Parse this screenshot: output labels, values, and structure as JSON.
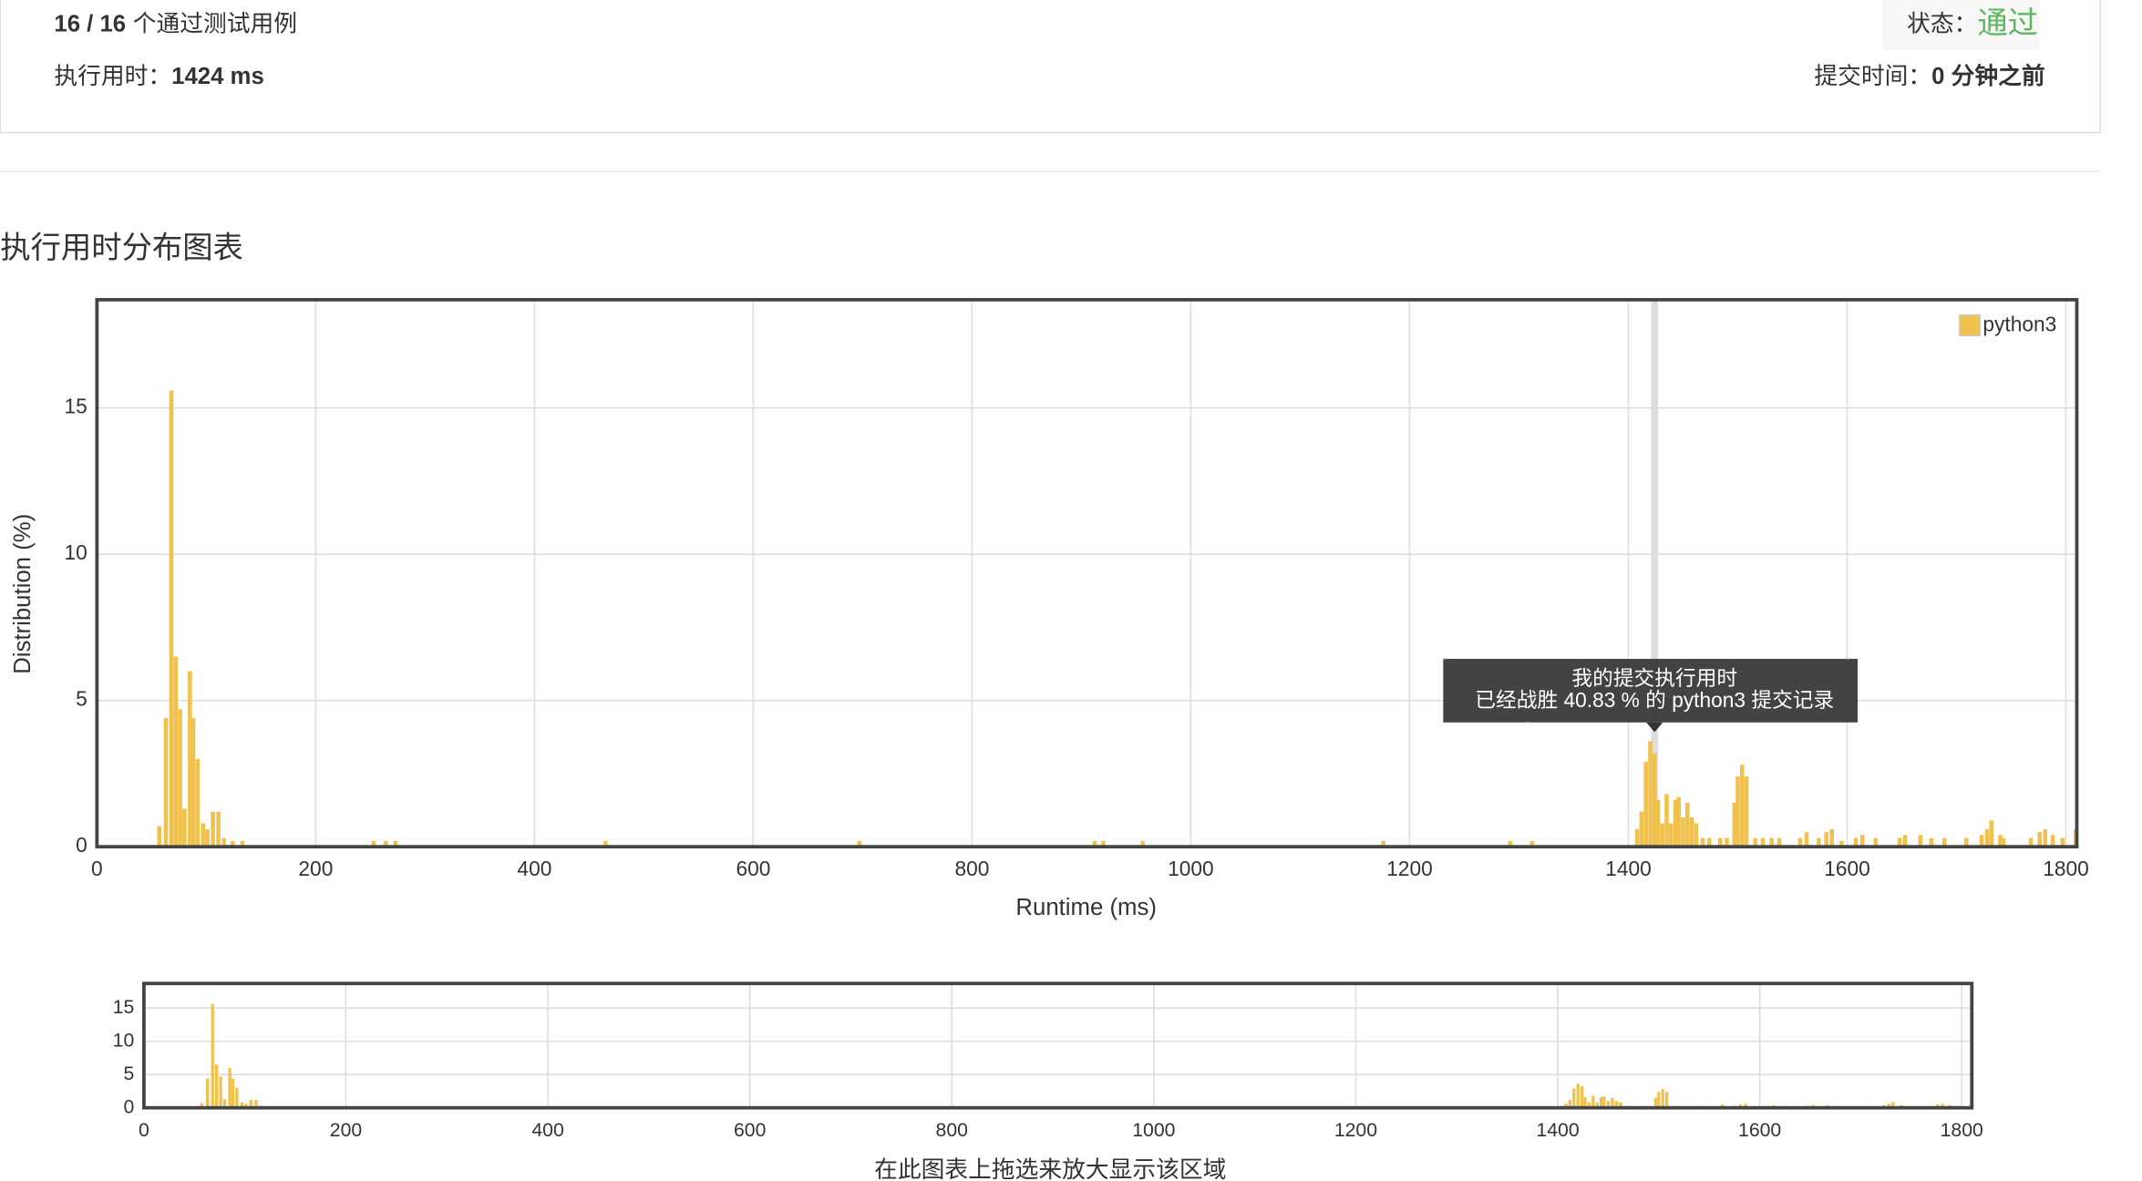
{
  "header": {
    "passed": "16 / 16",
    "passed_label": "个通过测试用例",
    "runtime_label": "执行用时：",
    "runtime": "1424 ms",
    "status_label": "状态：",
    "status": "通过",
    "submitted_label": "提交时间：",
    "submitted": "0 分钟之前"
  },
  "section_title": "执行用时分布图表",
  "chart_data": {
    "type": "bar",
    "xlabel": "Runtime (ms)",
    "ylabel": "Distribution (%)",
    "x": [
      57,
      63,
      68,
      72,
      76,
      80,
      85,
      88,
      92,
      97,
      101,
      106,
      111,
      116,
      124,
      133,
      253,
      264,
      273,
      465,
      697,
      912,
      920,
      956,
      1176,
      1292,
      1312,
      1408,
      1412,
      1416,
      1420,
      1424,
      1427,
      1431,
      1435,
      1439,
      1443,
      1446,
      1450,
      1454,
      1458,
      1462,
      1468,
      1474,
      1484,
      1490,
      1497,
      1500,
      1504,
      1508,
      1516,
      1523,
      1531,
      1538,
      1557,
      1563,
      1574,
      1581,
      1586,
      1595,
      1608,
      1614,
      1626,
      1648,
      1653,
      1667,
      1677,
      1689,
      1709,
      1723,
      1728,
      1732,
      1740,
      1743,
      1768,
      1776,
      1781,
      1788,
      1797,
      1809
    ],
    "series": [
      {
        "name": "python3",
        "color": "#f0c14b",
        "values": [
          0.7,
          4.4,
          15.6,
          6.5,
          4.7,
          1.3,
          6.0,
          4.4,
          3.0,
          0.8,
          0.6,
          1.2,
          1.2,
          0.3,
          0.2,
          0.2,
          0.2,
          0.2,
          0.2,
          0.2,
          0.2,
          0.2,
          0.2,
          0.2,
          0.2,
          0.2,
          0.2,
          0.6,
          1.2,
          2.9,
          3.6,
          3.2,
          1.6,
          0.8,
          1.8,
          0.8,
          1.6,
          1.7,
          1.0,
          1.5,
          1.0,
          0.8,
          0.3,
          0.3,
          0.3,
          0.3,
          1.5,
          2.4,
          2.8,
          2.4,
          0.3,
          0.3,
          0.3,
          0.3,
          0.3,
          0.5,
          0.3,
          0.5,
          0.6,
          0.2,
          0.3,
          0.4,
          0.3,
          0.3,
          0.4,
          0.4,
          0.3,
          0.3,
          0.3,
          0.4,
          0.6,
          0.9,
          0.4,
          0.3,
          0.3,
          0.5,
          0.6,
          0.4,
          0.3,
          0.6
        ]
      }
    ],
    "xlim": [
      0,
      1810
    ],
    "ylim": [
      0,
      18.7
    ],
    "xticks": [
      0,
      200,
      400,
      600,
      800,
      1000,
      1200,
      1400,
      1600,
      1800
    ],
    "yticks": [
      0,
      5,
      10,
      15
    ],
    "grid": true,
    "legend": "top-right",
    "highlight_x": 1424,
    "tooltip": [
      "我的提交执行用时",
      "已经战胜 40.83 % 的 python3 提交记录"
    ]
  },
  "navigator_caption": "在此图表上拖选来放大显示该区域"
}
